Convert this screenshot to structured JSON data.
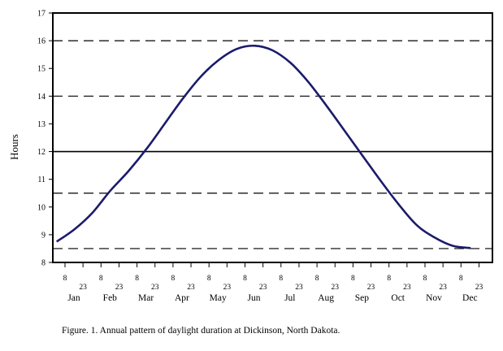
{
  "chart_data": {
    "type": "line",
    "title": "",
    "ylabel": "Hours",
    "xlabel": "",
    "ylim": [
      8,
      17
    ],
    "yticks": [
      8,
      9,
      10,
      11,
      12,
      13,
      14,
      15,
      16,
      17
    ],
    "months": [
      "Jan",
      "Feb",
      "Mar",
      "Apr",
      "May",
      "Jun",
      "Jul",
      "Aug",
      "Sep",
      "Oct",
      "Nov",
      "Dec"
    ],
    "month_ticks": [
      "8",
      "23"
    ],
    "reference_lines": [
      {
        "y": 16,
        "style": "dashed"
      },
      {
        "y": 14,
        "style": "dashed"
      },
      {
        "y": 12,
        "style": "solid"
      },
      {
        "y": 10.5,
        "style": "dashed"
      },
      {
        "y": 8.5,
        "style": "dashed"
      }
    ],
    "series": [
      {
        "name": "Daylight duration",
        "color": "#1b1b6b",
        "points": [
          {
            "month": 1,
            "day": 1,
            "hours": 8.75
          },
          {
            "month": 1,
            "day": 16,
            "hours": 9.2
          },
          {
            "month": 2,
            "day": 1,
            "hours": 9.8
          },
          {
            "month": 2,
            "day": 16,
            "hours": 10.6
          },
          {
            "month": 3,
            "day": 1,
            "hours": 11.3
          },
          {
            "month": 3,
            "day": 16,
            "hours": 12.1
          },
          {
            "month": 4,
            "day": 1,
            "hours": 13.0
          },
          {
            "month": 4,
            "day": 16,
            "hours": 13.9
          },
          {
            "month": 5,
            "day": 1,
            "hours": 14.7
          },
          {
            "month": 5,
            "day": 16,
            "hours": 15.3
          },
          {
            "month": 6,
            "day": 1,
            "hours": 15.7
          },
          {
            "month": 6,
            "day": 16,
            "hours": 15.82
          },
          {
            "month": 7,
            "day": 1,
            "hours": 15.65
          },
          {
            "month": 7,
            "day": 16,
            "hours": 15.2
          },
          {
            "month": 8,
            "day": 1,
            "hours": 14.5
          },
          {
            "month": 8,
            "day": 16,
            "hours": 13.65
          },
          {
            "month": 9,
            "day": 1,
            "hours": 12.75
          },
          {
            "month": 9,
            "day": 16,
            "hours": 11.85
          },
          {
            "month": 10,
            "day": 1,
            "hours": 10.95
          },
          {
            "month": 10,
            "day": 16,
            "hours": 10.1
          },
          {
            "month": 11,
            "day": 1,
            "hours": 9.35
          },
          {
            "month": 11,
            "day": 16,
            "hours": 8.9
          },
          {
            "month": 12,
            "day": 1,
            "hours": 8.6
          },
          {
            "month": 12,
            "day": 16,
            "hours": 8.52
          }
        ]
      }
    ]
  },
  "caption": "Figure. 1.  Annual pattern of daylight duration at Dickinson, North Dakota."
}
